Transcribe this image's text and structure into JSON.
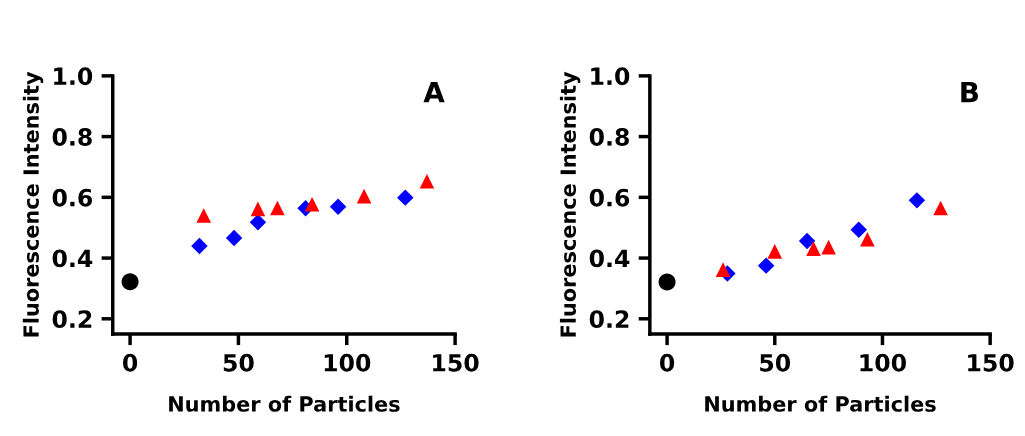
{
  "chart_data": [
    {
      "type": "scatter",
      "xlabel": "Number of Particles",
      "ylabel": "Fluorescence Intensity",
      "annotations": [
        "A"
      ],
      "xlim": [
        -8,
        150
      ],
      "ylim": [
        0.15,
        1.0
      ],
      "xticks": [
        0,
        50,
        100,
        150
      ],
      "yticks": [
        0.2,
        0.4,
        0.6,
        0.8,
        {
          "value": 1.0,
          "label": "1.0"
        }
      ],
      "grid": false,
      "legend": false,
      "series": [
        {
          "color": "#000000",
          "marker": "circle",
          "x": [
            0
          ],
          "values": [
            0.322
          ]
        },
        {
          "color": "#0000ff",
          "marker": "diamond",
          "x": [
            32,
            48,
            59,
            81,
            96,
            127
          ],
          "values": [
            0.44,
            0.466,
            0.518,
            0.564,
            0.569,
            0.599
          ]
        },
        {
          "color": "#ff0000",
          "marker": "triangle",
          "x": [
            34,
            59,
            68,
            84,
            108,
            137
          ],
          "values": [
            0.54,
            0.562,
            0.565,
            0.577,
            0.604,
            0.653
          ]
        }
      ]
    },
    {
      "type": "scatter",
      "xlabel": "Number of Particles",
      "ylabel": "Fluorescence Intensity",
      "annotations": [
        "B"
      ],
      "xlim": [
        -8,
        150
      ],
      "ylim": [
        0.15,
        1.0
      ],
      "xticks": [
        0,
        50,
        100,
        150
      ],
      "yticks": [
        0.2,
        0.4,
        0.6,
        0.8,
        {
          "value": 1.0,
          "label": "1.0"
        }
      ],
      "grid": false,
      "legend": false,
      "series": [
        {
          "color": "#000000",
          "marker": "circle",
          "x": [
            0
          ],
          "values": [
            0.321
          ]
        },
        {
          "color": "#0000ff",
          "marker": "diamond",
          "x": [
            28,
            46,
            65,
            89,
            116
          ],
          "values": [
            0.349,
            0.375,
            0.456,
            0.493,
            0.59
          ]
        },
        {
          "color": "#ff0000",
          "marker": "triangle",
          "x": [
            26,
            50,
            68,
            75,
            93,
            127
          ],
          "values": [
            0.362,
            0.422,
            0.431,
            0.436,
            0.462,
            0.565
          ]
        }
      ]
    }
  ]
}
